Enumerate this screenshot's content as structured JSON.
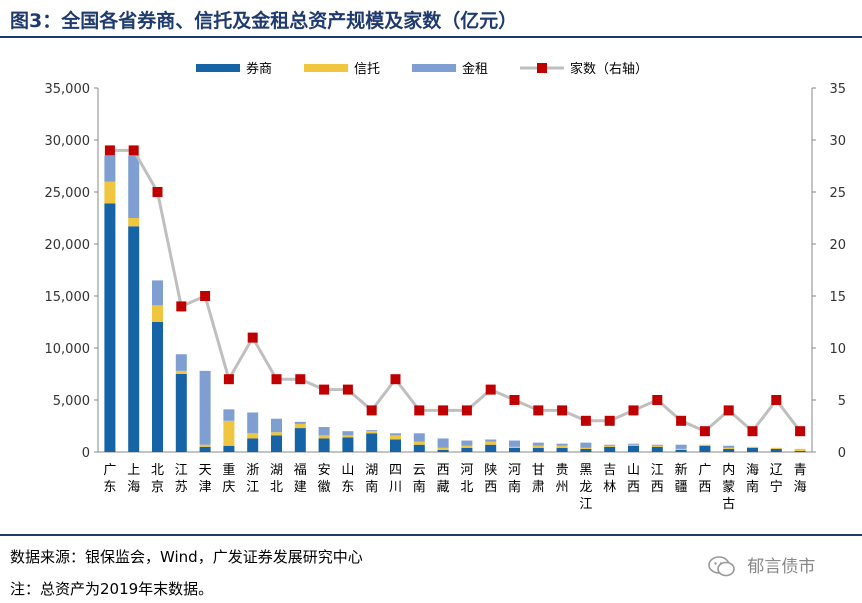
{
  "header": {
    "title": "图3：全国各省券商、信托及金租总资产规模及家数（亿元）"
  },
  "footer": {
    "source": "数据来源：银保监会，Wind，广发证券发展研究中心",
    "note": "注：总资产为2019年末数据。",
    "watermark": "郁言债市"
  },
  "colors": {
    "broker": "#1663a5",
    "trust": "#f0c540",
    "leasing": "#7f9fd2",
    "count_line": "#bfbfbf",
    "count_marker": "#c00000"
  },
  "chart_data": {
    "type": "bar",
    "stacked": true,
    "secondary_line": true,
    "categories": [
      "广东",
      "上海",
      "北京",
      "江苏",
      "天津",
      "重庆",
      "浙江",
      "湖北",
      "福建",
      "安徽",
      "山东",
      "湖南",
      "四川",
      "云南",
      "西藏",
      "河北",
      "陕西",
      "河南",
      "甘肃",
      "贵州",
      "黑龙江",
      "吉林",
      "山西",
      "江西",
      "新疆",
      "广西",
      "内蒙古",
      "海南",
      "辽宁",
      "青海"
    ],
    "series": [
      {
        "name": "券商",
        "axis": "left",
        "values": [
          23900,
          21700,
          12500,
          7500,
          500,
          600,
          1300,
          1600,
          2300,
          1300,
          1400,
          1800,
          1200,
          700,
          200,
          400,
          700,
          400,
          400,
          400,
          300,
          500,
          600,
          500,
          200,
          600,
          300,
          400,
          300,
          100
        ]
      },
      {
        "name": "信托",
        "axis": "left",
        "values": [
          2100,
          800,
          1600,
          300,
          200,
          2400,
          500,
          300,
          400,
          300,
          200,
          200,
          400,
          300,
          200,
          200,
          300,
          100,
          200,
          200,
          100,
          100,
          100,
          100,
          100,
          100,
          100,
          100,
          100,
          200
        ]
      },
      {
        "name": "金租",
        "axis": "left",
        "values": [
          2500,
          6000,
          2400,
          1600,
          7100,
          1100,
          2000,
          1300,
          200,
          800,
          400,
          100,
          200,
          800,
          900,
          500,
          200,
          600,
          300,
          200,
          500,
          100,
          100,
          100,
          400,
          0,
          200,
          0,
          0,
          0
        ]
      },
      {
        "name": "家数（右轴）",
        "type": "line",
        "axis": "right",
        "values": [
          29,
          29,
          25,
          14,
          15,
          7,
          11,
          7,
          7,
          6,
          6,
          4,
          7,
          4,
          4,
          4,
          6,
          5,
          4,
          4,
          3,
          3,
          4,
          5,
          3,
          2,
          4,
          2,
          5,
          2
        ]
      }
    ],
    "y_left": {
      "min": 0,
      "max": 35000,
      "ticks": [
        "0",
        "5,000",
        "10,000",
        "15,000",
        "20,000",
        "25,000",
        "30,000",
        "35,000"
      ]
    },
    "y_right": {
      "min": 0,
      "max": 35,
      "ticks": [
        "0",
        "5",
        "10",
        "15",
        "20",
        "25",
        "30",
        "35"
      ]
    },
    "grid": false,
    "legend": "top-center"
  }
}
